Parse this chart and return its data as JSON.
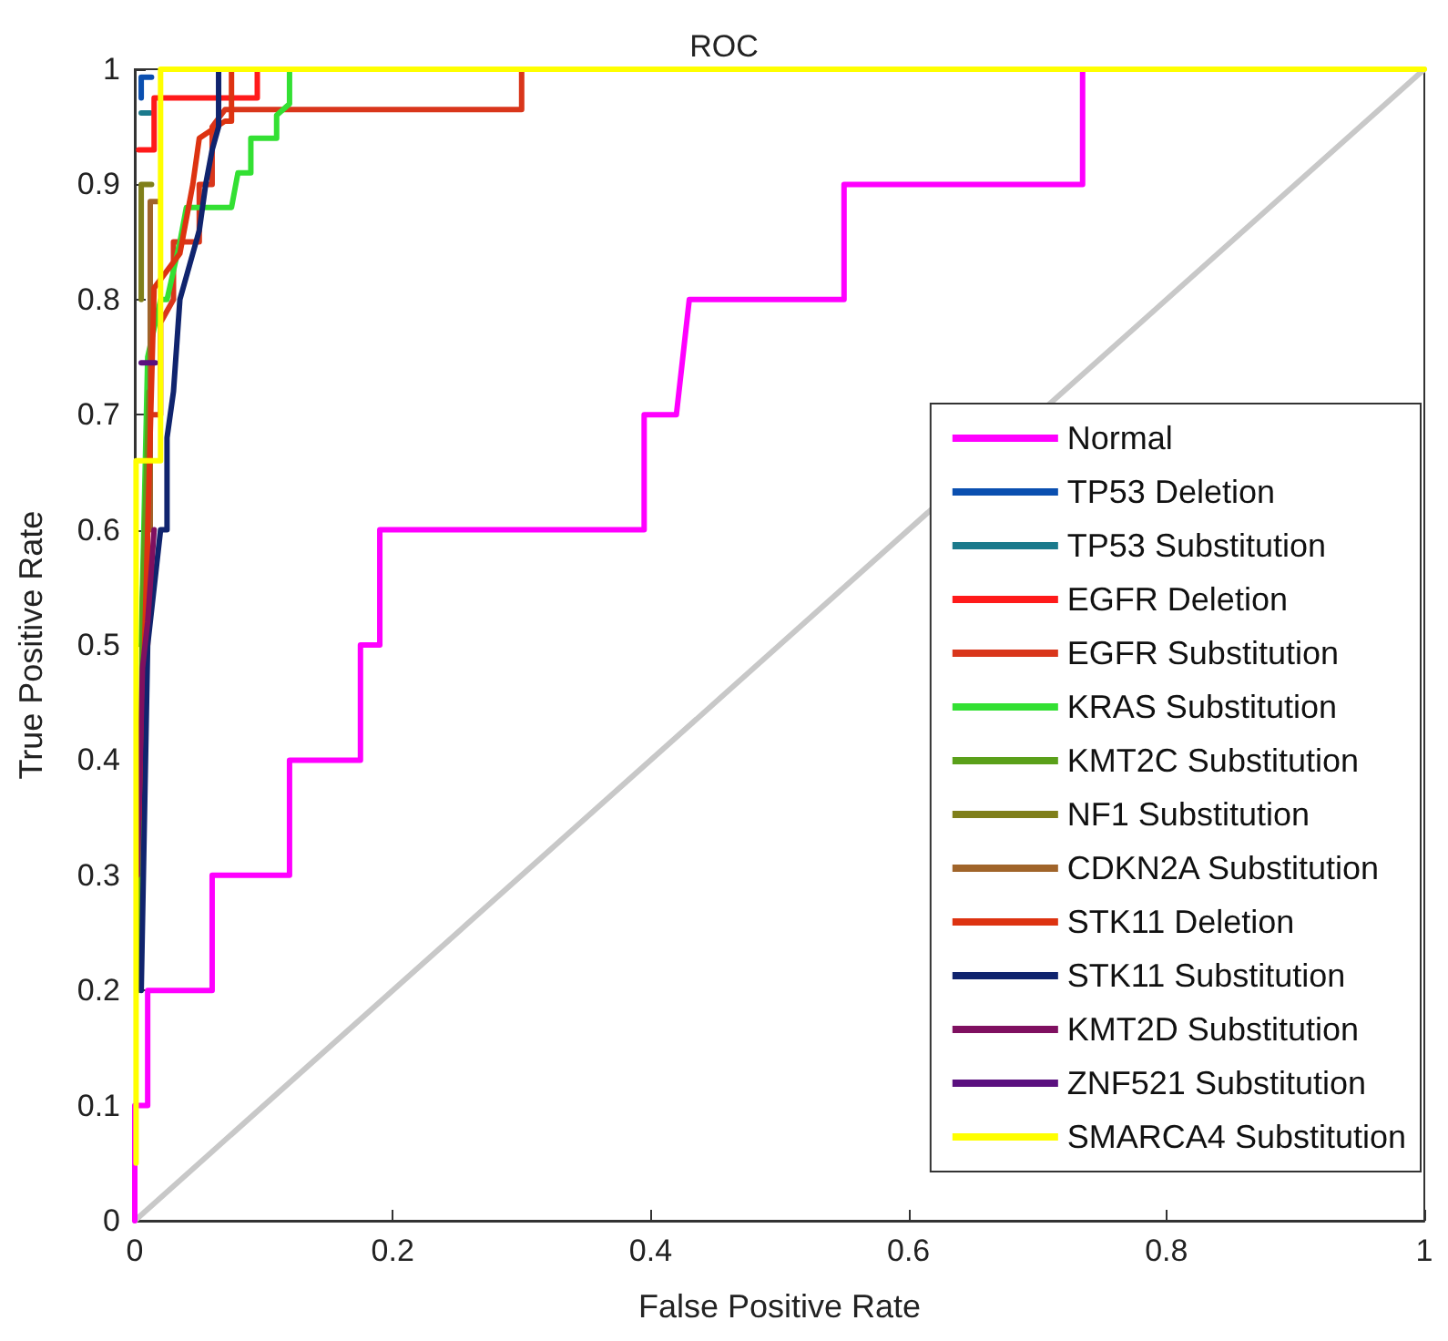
{
  "chart_data": {
    "type": "line",
    "title": "ROC",
    "xlabel": "False Positive Rate",
    "ylabel": "True Positive Rate",
    "xlim": [
      0,
      1
    ],
    "ylim": [
      0,
      1
    ],
    "xticks": [
      0,
      0.2,
      0.4,
      0.6,
      0.8,
      1
    ],
    "yticks": [
      0,
      0.1,
      0.2,
      0.3,
      0.4,
      0.5,
      0.6,
      0.7,
      0.8,
      0.9,
      1
    ],
    "grid": false,
    "legend": "bottom right",
    "marker": "none",
    "line_style": "solid",
    "series": [
      {
        "color": "#c8c8c8",
        "x": [
          0,
          1
        ],
        "values": [
          0,
          1
        ]
      },
      {
        "name": "Normal",
        "color": "#ff00ff",
        "x": [
          0,
          0,
          0.01,
          0.01,
          0.06,
          0.06,
          0.12,
          0.12,
          0.175,
          0.175,
          0.19,
          0.19,
          0.395,
          0.395,
          0.42,
          0.43,
          0.55,
          0.55,
          0.735,
          0.735
        ],
        "values": [
          0,
          0.1,
          0.1,
          0.2,
          0.2,
          0.3,
          0.3,
          0.4,
          0.4,
          0.5,
          0.5,
          0.6,
          0.6,
          0.7,
          0.7,
          0.8,
          0.8,
          0.9,
          0.9,
          1
        ]
      },
      {
        "name": "TP53 Deletion",
        "color": "#0a4fb0",
        "x": [
          0.005,
          0.005,
          0.013
        ],
        "values": [
          0.975,
          0.993,
          0.993
        ]
      },
      {
        "name": "TP53 Substitution",
        "color": "#1b7a8c",
        "x": [
          0.005,
          0.012
        ],
        "values": [
          0.962,
          0.962
        ]
      },
      {
        "name": "EGFR Deletion",
        "color": "#ff1a1a",
        "x": [
          0.003,
          0.015,
          0.015,
          0.095,
          0.095
        ],
        "values": [
          0.93,
          0.93,
          0.975,
          0.975,
          1
        ]
      },
      {
        "name": "EGFR Substitution",
        "color": "#d9361b",
        "x": [
          0.005,
          0.01,
          0.01,
          0.02,
          0.02,
          0.03,
          0.03,
          0.05,
          0.05,
          0.06,
          0.06,
          0.07,
          0.3,
          0.3
        ],
        "values": [
          0.5,
          0.5,
          0.7,
          0.7,
          0.78,
          0.8,
          0.85,
          0.85,
          0.9,
          0.9,
          0.95,
          0.965,
          0.965,
          1
        ]
      },
      {
        "name": "KRAS Substitution",
        "color": "#33e033",
        "x": [
          0.005,
          0.01,
          0.02,
          0.025,
          0.035,
          0.04,
          0.075,
          0.08,
          0.09,
          0.09,
          0.11,
          0.11,
          0.12,
          0.12
        ],
        "values": [
          0.5,
          0.75,
          0.8,
          0.8,
          0.85,
          0.88,
          0.88,
          0.91,
          0.91,
          0.94,
          0.94,
          0.96,
          0.97,
          1
        ]
      },
      {
        "name": "KMT2C Substitution",
        "color": "#5aa01a",
        "x": [
          0.003,
          0.006,
          0.011
        ],
        "values": [
          0.2,
          0.54,
          0.72
        ]
      },
      {
        "name": "NF1 Substitution",
        "color": "#7f7f1a",
        "x": [
          0.005,
          0.005,
          0.013
        ],
        "values": [
          0.8,
          0.9,
          0.9
        ]
      },
      {
        "name": "CDKN2A Substitution",
        "color": "#a0642a",
        "x": [
          0.012,
          0.012,
          0.018
        ],
        "values": [
          0.6,
          0.885,
          0.885
        ]
      },
      {
        "name": "STK11 Deletion",
        "color": "#dd3311",
        "x": [
          0.004,
          0.01,
          0.015,
          0.035,
          0.045,
          0.05,
          0.07,
          0.075,
          0.075
        ],
        "values": [
          0.35,
          0.6,
          0.81,
          0.84,
          0.9,
          0.94,
          0.955,
          0.955,
          1
        ]
      },
      {
        "name": "STK11 Substitution",
        "color": "#10246e",
        "x": [
          0.005,
          0.01,
          0.02,
          0.025,
          0.025,
          0.03,
          0.035,
          0.04,
          0.045,
          0.05,
          0.055,
          0.06,
          0.065,
          0.065
        ],
        "values": [
          0.2,
          0.5,
          0.6,
          0.6,
          0.68,
          0.72,
          0.8,
          0.82,
          0.84,
          0.86,
          0.9,
          0.93,
          0.95,
          1
        ]
      },
      {
        "name": "KMT2D Substitution",
        "color": "#7f1060",
        "x": [
          0.002,
          0.006,
          0.01,
          0.015
        ],
        "values": [
          0.3,
          0.48,
          0.52,
          0.6
        ]
      },
      {
        "name": "ZNF521 Substitution",
        "color": "#5a107f",
        "x": [
          0.005,
          0.016
        ],
        "values": [
          0.745,
          0.745
        ]
      },
      {
        "name": "SMARCA4 Substitution",
        "color": "#ffff00",
        "x": [
          0.001,
          0.001,
          0.02,
          0.02,
          1
        ],
        "values": [
          0.05,
          0.66,
          0.66,
          1,
          1
        ]
      }
    ]
  }
}
